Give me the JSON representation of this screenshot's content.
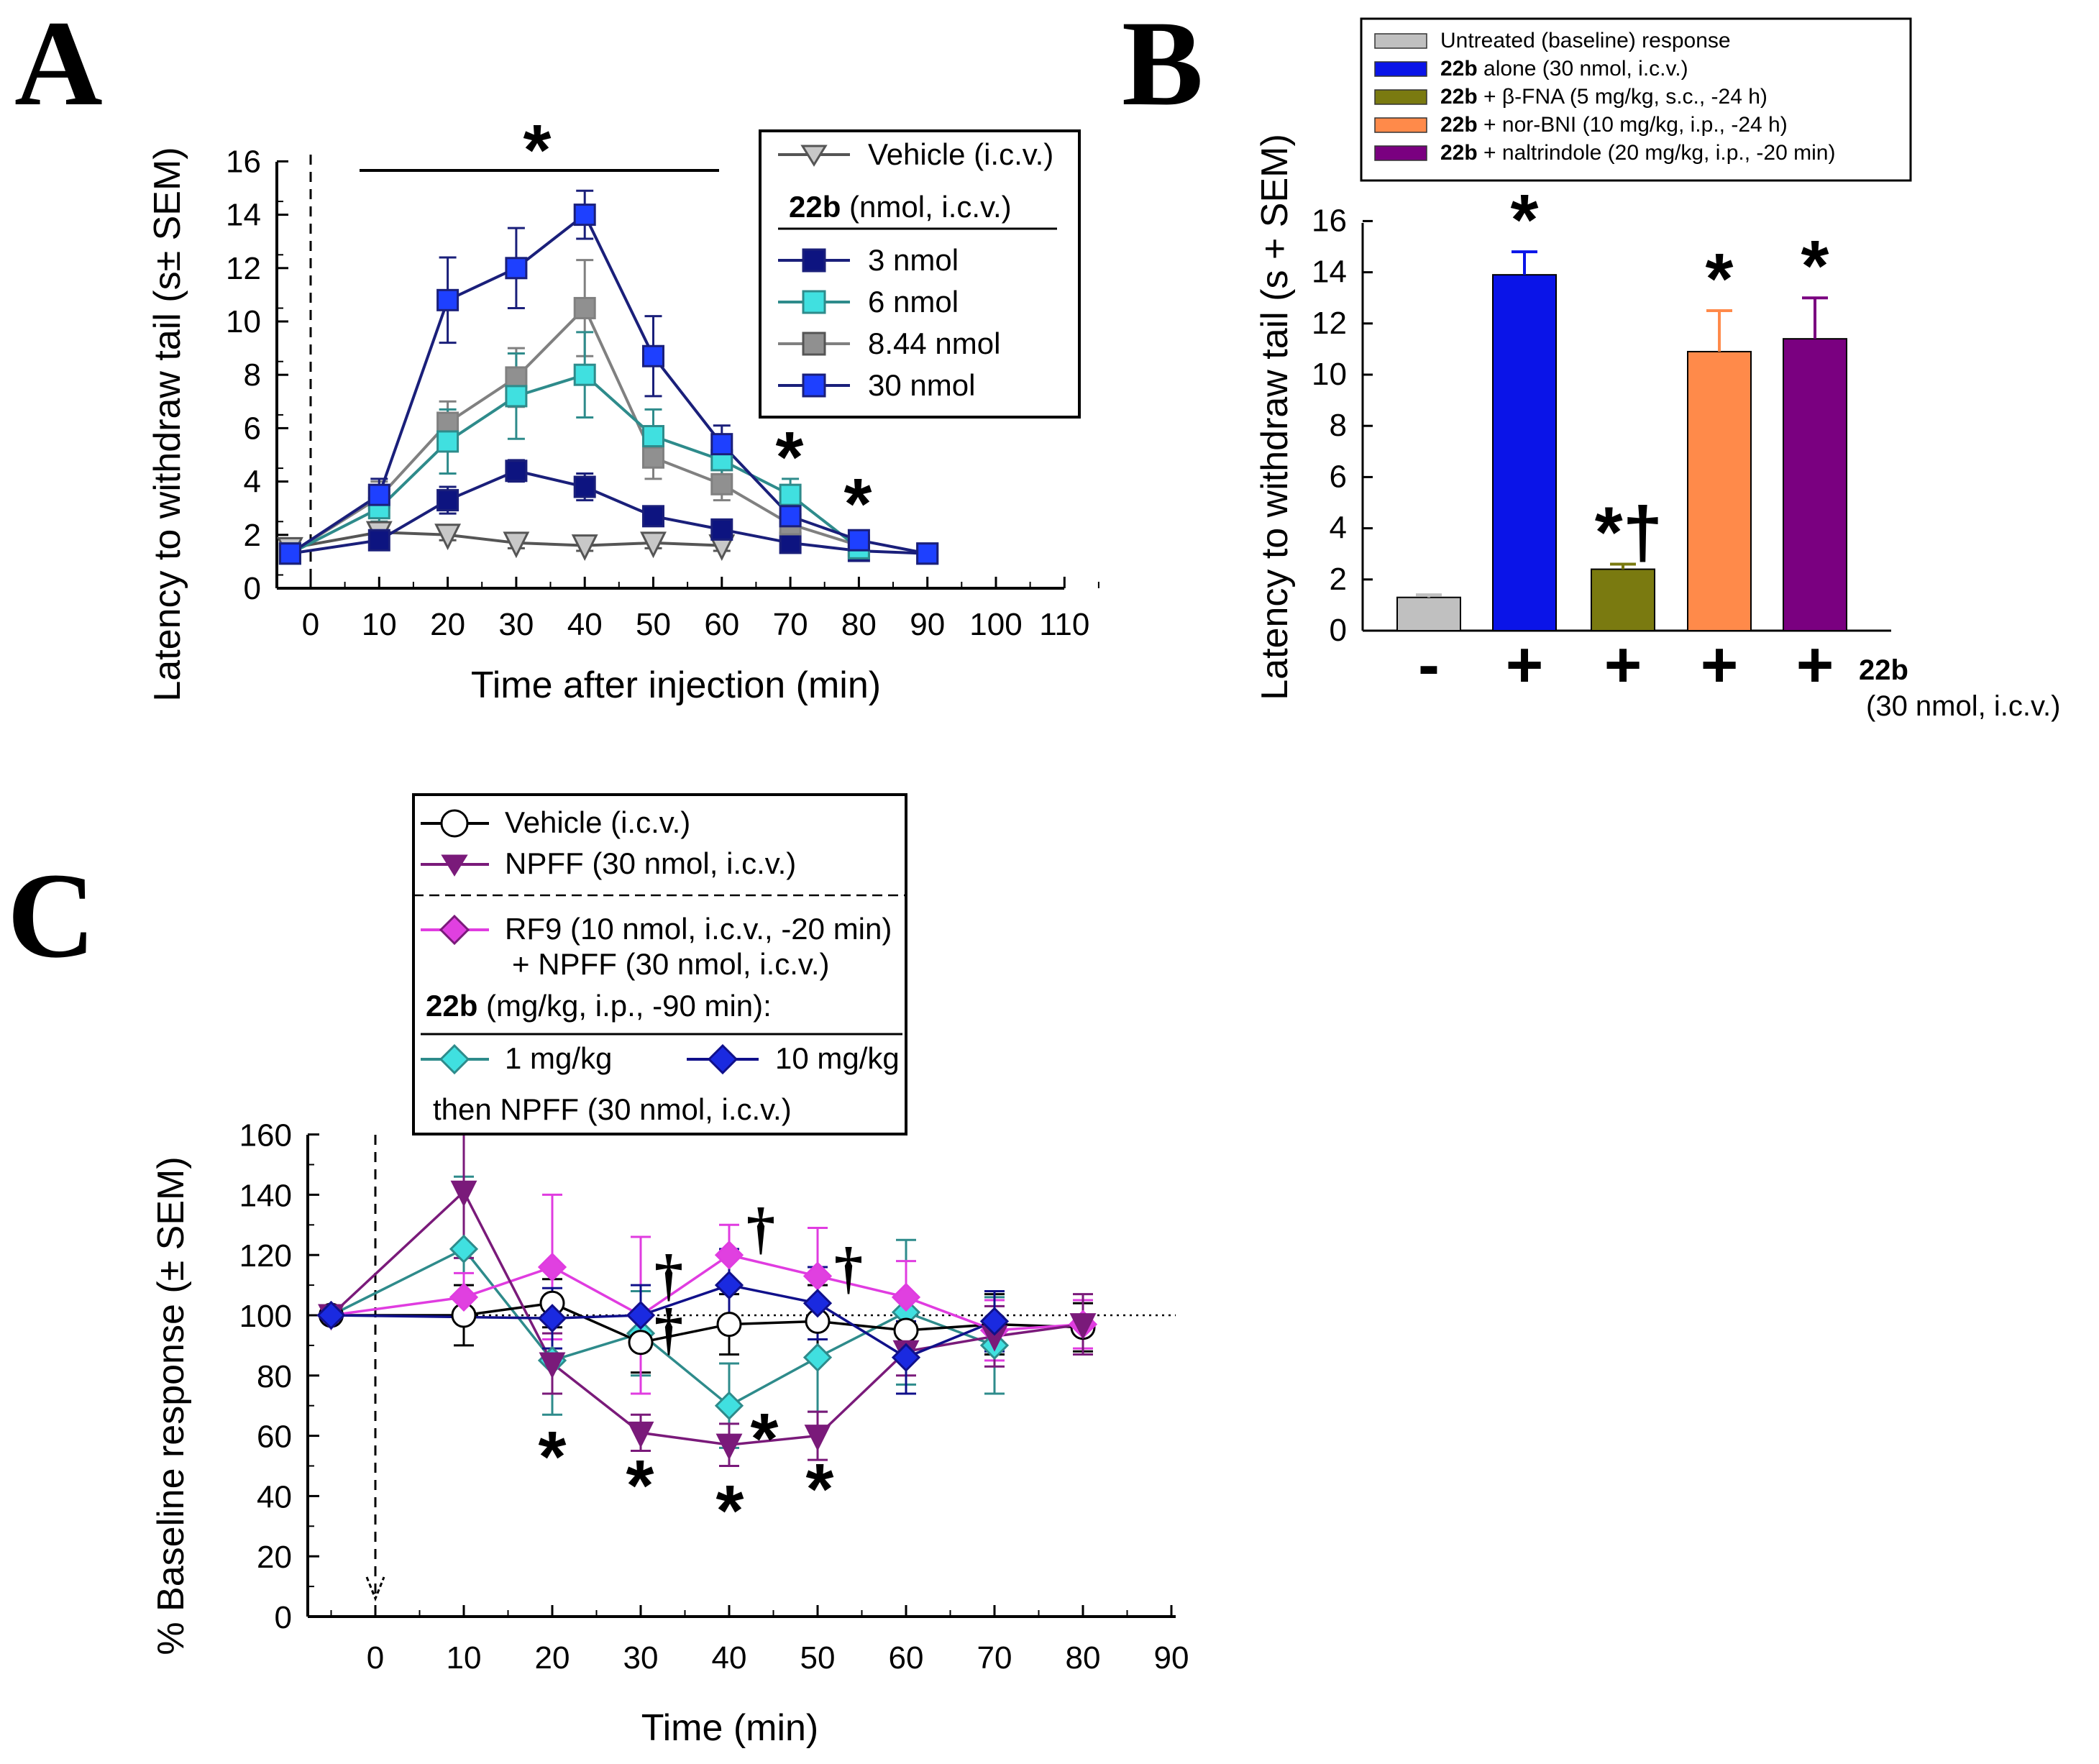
{
  "chart_data": [
    {
      "panel": "A",
      "type": "line",
      "xlabel": "Time after injection (min)",
      "ylabel": "Latency to withdraw tail (s± SEM)",
      "xlim": [
        -5,
        110
      ],
      "ylim": [
        0,
        16
      ],
      "xticks": [
        "0",
        "10",
        "20",
        "30",
        "40",
        "50",
        "60",
        "70",
        "80",
        "90",
        "100",
        "110"
      ],
      "yticks": [
        "0",
        "2",
        "4",
        "6",
        "8",
        "10",
        "12",
        "14",
        "16"
      ],
      "injection_marker_x": 0,
      "legend_group_title_bold": "22b",
      "legend_group_title_rest": " (nmol, i.c.v.)",
      "significance": [
        "*",
        "*",
        "*"
      ],
      "series": [
        {
          "name": "Vehicle (i.c.v.)",
          "color": "#555555",
          "fill": "#c8c8c8",
          "marker": "triangle-down",
          "x": [
            -3,
            10,
            20,
            30,
            40,
            50,
            60
          ],
          "y": [
            1.5,
            2.1,
            2.0,
            1.7,
            1.6,
            1.7,
            1.6
          ],
          "err": [
            0.3,
            0.2,
            0.2,
            0.2,
            0.2,
            0.2,
            0.2
          ]
        },
        {
          "name": "3 nmol",
          "color": "#1a1f7a",
          "fill": "#0d1480",
          "marker": "square",
          "x": [
            -3,
            10,
            20,
            30,
            40,
            50,
            60,
            70,
            80,
            90
          ],
          "y": [
            1.3,
            1.8,
            3.3,
            4.4,
            3.8,
            2.7,
            2.2,
            1.7,
            1.4,
            1.3
          ],
          "err": [
            0.3,
            0.3,
            0.5,
            0.4,
            0.5,
            0.3,
            0.3,
            0.2,
            0.2,
            0.2
          ]
        },
        {
          "name": "6 nmol",
          "color": "#2e8b8b",
          "fill": "#40e0e0",
          "marker": "square",
          "x": [
            -3,
            10,
            20,
            30,
            40,
            50,
            60,
            70,
            80
          ],
          "y": [
            1.3,
            3.0,
            5.5,
            7.2,
            8.0,
            5.7,
            4.8,
            3.5,
            1.5
          ],
          "err": [
            0.3,
            0.5,
            1.2,
            1.6,
            1.6,
            1.0,
            0.8,
            0.6,
            0.3
          ]
        },
        {
          "name": "8.44 nmol",
          "color": "#808080",
          "fill": "#909090",
          "marker": "square",
          "x": [
            -3,
            10,
            20,
            30,
            40,
            50,
            60,
            70,
            80
          ],
          "y": [
            1.3,
            3.4,
            6.2,
            7.9,
            10.5,
            4.9,
            3.9,
            2.4,
            1.6
          ],
          "err": [
            0.3,
            0.6,
            0.8,
            1.1,
            1.8,
            0.8,
            0.6,
            0.5,
            0.3
          ]
        },
        {
          "name": "30 nmol",
          "color": "#1a1f7a",
          "fill": "#1e40ff",
          "marker": "square",
          "x": [
            -3,
            10,
            20,
            30,
            40,
            50,
            60,
            70,
            80,
            90
          ],
          "y": [
            1.3,
            3.5,
            10.8,
            12.0,
            14.0,
            8.7,
            5.4,
            2.7,
            1.8,
            1.3
          ],
          "err": [
            0.3,
            0.6,
            1.6,
            1.5,
            0.9,
            1.5,
            0.7,
            0.5,
            0.3,
            0.2
          ]
        }
      ]
    },
    {
      "panel": "B",
      "type": "bar",
      "ylabel": "Latency to withdraw tail (s + SEM)",
      "ylim": [
        0,
        16
      ],
      "yticks": [
        "0",
        "2",
        "4",
        "6",
        "8",
        "10",
        "12",
        "14",
        "16"
      ],
      "categories": [
        "-",
        "+",
        "+",
        "+",
        "+"
      ],
      "category_axis_label": "22b",
      "category_axis_sublabel": "(30 nmol, i.c.v.)",
      "values": [
        1.3,
        13.9,
        2.4,
        10.9,
        11.4
      ],
      "errors": [
        0.1,
        0.9,
        0.2,
        1.6,
        1.6
      ],
      "colors": [
        "#c0c0c0",
        "#0a14e8",
        "#7a7a10",
        "#ff8a4a",
        "#7a0080"
      ],
      "annotations": [
        "",
        "*",
        "*†",
        "*",
        "*"
      ],
      "legend": [
        {
          "bold": "",
          "text": "Untreated (baseline) response"
        },
        {
          "bold": "22b",
          "text": " alone (30 nmol, i.c.v.)"
        },
        {
          "bold": "22b",
          "text": " + β-FNA (5 mg/kg, s.c., -24 h)"
        },
        {
          "bold": "22b",
          "text": " + nor-BNI (10 mg/kg, i.p., -24 h)"
        },
        {
          "bold": "22b",
          "text": " + naltrindole (20 mg/kg, i.p., -20 min)"
        }
      ]
    },
    {
      "panel": "C",
      "type": "line",
      "xlabel": "Time (min)",
      "ylabel": "% Baseline response (± SEM)",
      "xlim": [
        -8,
        90
      ],
      "ylim": [
        0,
        160
      ],
      "xticks": [
        "0",
        "10",
        "20",
        "30",
        "40",
        "50",
        "60",
        "70",
        "80",
        "90"
      ],
      "yticks": [
        "0",
        "20",
        "40",
        "60",
        "80",
        "100",
        "120",
        "140",
        "160"
      ],
      "reference_line_y": 100,
      "injection_marker_x": 0,
      "legend_rf9_line2": "+ NPFF (30 nmol, i.c.v.)",
      "legend_group_title_bold": "22b",
      "legend_group_title_rest": " (mg/kg, i.p., -90 min):",
      "legend_footer": "then NPFF (30 nmol, i.c.v.)",
      "significance": [
        "*",
        "*",
        "*",
        "*",
        "*",
        "†",
        "†",
        "†",
        "†"
      ],
      "series": [
        {
          "name": "Vehicle (i.c.v.)",
          "color": "#000000",
          "fill": "#ffffff",
          "marker": "circle",
          "x": [
            -5,
            10,
            20,
            30,
            40,
            50,
            60,
            70,
            80
          ],
          "y": [
            100,
            100,
            104,
            91,
            97,
            98,
            95,
            97,
            96
          ],
          "err": [
            2,
            10,
            8,
            10,
            10,
            12,
            10,
            10,
            8
          ]
        },
        {
          "name": "NPFF (30 nmol, i.c.v.)",
          "color": "#7a1a7a",
          "fill": "#7a1a7a",
          "marker": "triangle-down",
          "x": [
            -5,
            10,
            20,
            30,
            40,
            50,
            60,
            70,
            80
          ],
          "y": [
            100,
            141,
            84,
            61,
            57,
            60,
            88,
            93,
            97
          ],
          "err": [
            2,
            22,
            10,
            6,
            7,
            8,
            8,
            10,
            10
          ]
        },
        {
          "name": "RF9 (10 nmol, i.c.v., -20 min)",
          "color": "#e03ce0",
          "fill": "#e040e0",
          "marker": "diamond",
          "x": [
            -5,
            10,
            20,
            30,
            40,
            50,
            60,
            70,
            80
          ],
          "y": [
            100,
            106,
            116,
            100,
            120,
            113,
            106,
            95,
            97
          ],
          "err": [
            2,
            8,
            24,
            26,
            10,
            16,
            12,
            10,
            8
          ]
        },
        {
          "name": "1 mg/kg",
          "color": "#2e8b8b",
          "fill": "#40e0e0",
          "marker": "diamond",
          "x": [
            -5,
            10,
            20,
            30,
            40,
            50,
            60,
            70
          ],
          "y": [
            100,
            122,
            85,
            94,
            70,
            86,
            101,
            90
          ],
          "err": [
            2,
            24,
            18,
            14,
            14,
            18,
            24,
            16
          ]
        },
        {
          "name": "10 mg/kg",
          "color": "#10108a",
          "fill": "#1a2ae0",
          "marker": "diamond",
          "x": [
            -5,
            20,
            30,
            40,
            50,
            60,
            70
          ],
          "y": [
            100,
            99,
            100,
            110,
            104,
            86,
            98
          ],
          "err": [
            2,
            10,
            10,
            12,
            12,
            12,
            10
          ]
        }
      ]
    }
  ],
  "panel_labels": [
    "A",
    "B",
    "C"
  ]
}
